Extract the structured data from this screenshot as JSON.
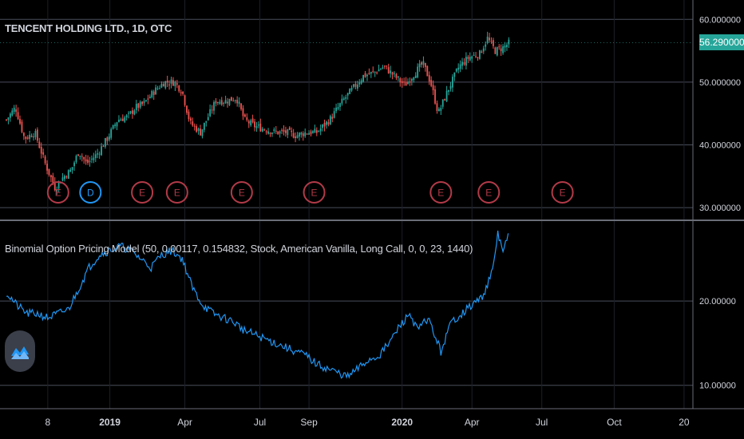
{
  "header": {
    "symbol_title": "TENCENT HOLDING LTD., 1D, OTC",
    "indicator_title": "Binomial Option Pricing Model (50, 0.00117, 0.154832, Stock, American Vanilla, Long Call, 0, 0, 23, 1440)"
  },
  "colors": {
    "background": "#000000",
    "grid": "#4a4e5c",
    "up_candle": "#26a69a",
    "down_candle": "#ef5350",
    "indicator_line": "#2196f3",
    "earnings_marker": "#b23a48",
    "dividend_marker": "#2196f3",
    "price_tag_bg": "#26a69a",
    "axis_text": "#d1d4dc"
  },
  "price_tag": "56.290000",
  "logo": "tradingview-logo-icon",
  "chart_data": [
    {
      "type": "candlestick",
      "title": "TENCENT HOLDING LTD., 1D, OTC",
      "ylim": [
        29,
        60.8
      ],
      "y_ticks": [
        "60.000000",
        "50.000000",
        "40.000000",
        "30.000000"
      ],
      "last_value": 56.29,
      "close_path": [
        [
          0,
          44
        ],
        [
          0.35,
          46
        ],
        [
          0.7,
          41
        ],
        [
          1.1,
          42
        ],
        [
          1.5,
          37
        ],
        [
          1.9,
          33
        ],
        [
          2.1,
          34.5
        ],
        [
          2.5,
          36
        ],
        [
          2.8,
          39
        ],
        [
          3.1,
          37
        ],
        [
          3.5,
          38.5
        ],
        [
          3.9,
          41
        ],
        [
          4.3,
          44
        ],
        [
          4.7,
          44.5
        ],
        [
          5.0,
          46
        ],
        [
          5.3,
          46.5
        ],
        [
          5.7,
          48.5
        ],
        [
          6.1,
          50
        ],
        [
          6.5,
          50
        ],
        [
          6.8,
          48.5
        ],
        [
          7.1,
          43.5
        ],
        [
          7.5,
          42
        ],
        [
          7.8,
          44.5
        ],
        [
          8.1,
          47
        ],
        [
          8.5,
          47
        ],
        [
          8.9,
          47.5
        ],
        [
          9.2,
          44
        ],
        [
          9.6,
          43
        ],
        [
          10.0,
          42.5
        ],
        [
          10.4,
          42
        ],
        [
          10.8,
          42
        ],
        [
          11.2,
          41.5
        ],
        [
          11.6,
          42
        ],
        [
          12.0,
          42
        ],
        [
          12.5,
          44
        ],
        [
          13.0,
          47
        ],
        [
          13.4,
          49
        ],
        [
          13.8,
          51
        ],
        [
          14.2,
          51.5
        ],
        [
          14.6,
          52.5
        ],
        [
          15.0,
          51
        ],
        [
          15.4,
          49.5
        ],
        [
          15.8,
          51.5
        ],
        [
          16.1,
          53
        ],
        [
          16.4,
          50
        ],
        [
          16.7,
          45
        ],
        [
          17.1,
          49
        ],
        [
          17.5,
          52.5
        ],
        [
          17.9,
          54
        ],
        [
          18.3,
          54.5
        ],
        [
          18.6,
          57
        ],
        [
          18.9,
          55
        ],
        [
          19.2,
          55.5
        ],
        [
          19.45,
          56.29
        ]
      ],
      "markers": [
        {
          "label": "E",
          "x": 2.0
        },
        {
          "label": "D",
          "x": 3.25
        },
        {
          "label": "E",
          "x": 5.25
        },
        {
          "label": "E",
          "x": 6.6
        },
        {
          "label": "E",
          "x": 9.1
        },
        {
          "label": "E",
          "x": 11.9
        },
        {
          "label": "E",
          "x": 16.8
        },
        {
          "label": "E",
          "x": 18.65
        },
        {
          "label": "E",
          "x": 21.5
        }
      ]
    },
    {
      "type": "line",
      "title": "Binomial Option Pricing Model (50, 0.00117, 0.154832, Stock, American Vanilla, Long Call, 0, 0, 23, 1440)",
      "ylim": [
        9.5,
        29
      ],
      "y_ticks": [
        "20.00000",
        "10.00000"
      ],
      "series": [
        {
          "values_path": [
            [
              0,
              21
            ],
            [
              0.4,
              19.5
            ],
            [
              0.8,
              18.5
            ],
            [
              1.2,
              18.5
            ],
            [
              1.6,
              18
            ],
            [
              2.0,
              18.5
            ],
            [
              2.4,
              19
            ],
            [
              2.8,
              21.5
            ],
            [
              3.2,
              24
            ],
            [
              3.6,
              25.5
            ],
            [
              4.0,
              26
            ],
            [
              4.4,
              26.5
            ],
            [
              4.8,
              26
            ],
            [
              5.2,
              25
            ],
            [
              5.6,
              24
            ],
            [
              6.0,
              25.5
            ],
            [
              6.4,
              26
            ],
            [
              6.8,
              25
            ],
            [
              7.2,
              21.5
            ],
            [
              7.6,
              19.5
            ],
            [
              8.0,
              18.5
            ],
            [
              8.4,
              18
            ],
            [
              8.8,
              17.5
            ],
            [
              9.2,
              16.5
            ],
            [
              9.6,
              16
            ],
            [
              10.0,
              15.5
            ],
            [
              10.4,
              15
            ],
            [
              10.8,
              14.5
            ],
            [
              11.2,
              14
            ],
            [
              11.6,
              13.5
            ],
            [
              12.0,
              12.5
            ],
            [
              12.4,
              12
            ],
            [
              12.8,
              11.5
            ],
            [
              13.2,
              11
            ],
            [
              13.6,
              12
            ],
            [
              14.0,
              13
            ],
            [
              14.4,
              13.5
            ],
            [
              14.8,
              15
            ],
            [
              15.2,
              17
            ],
            [
              15.6,
              18.5
            ],
            [
              15.9,
              16.5
            ],
            [
              16.3,
              18
            ],
            [
              16.8,
              14
            ],
            [
              17.2,
              17.5
            ],
            [
              17.6,
              18.5
            ],
            [
              18.0,
              19.5
            ],
            [
              18.4,
              20.5
            ],
            [
              18.8,
              23.5
            ],
            [
              19.0,
              28
            ],
            [
              19.2,
              26
            ],
            [
              19.45,
              28
            ]
          ]
        }
      ]
    },
    {
      "type": "time_axis",
      "ticks": [
        {
          "label": "8",
          "x": 1.6
        },
        {
          "label": "2019",
          "x": 4.0,
          "bold": true
        },
        {
          "label": "Apr",
          "x": 6.9
        },
        {
          "label": "Jul",
          "x": 9.8
        },
        {
          "label": "Sep",
          "x": 11.7
        },
        {
          "label": "2020",
          "x": 15.3,
          "bold": true
        },
        {
          "label": "Apr",
          "x": 18.0
        },
        {
          "label": "Jul",
          "x": 20.7
        },
        {
          "label": "Oct",
          "x": 23.5
        },
        {
          "label": "20",
          "x": 26.2
        }
      ]
    }
  ]
}
